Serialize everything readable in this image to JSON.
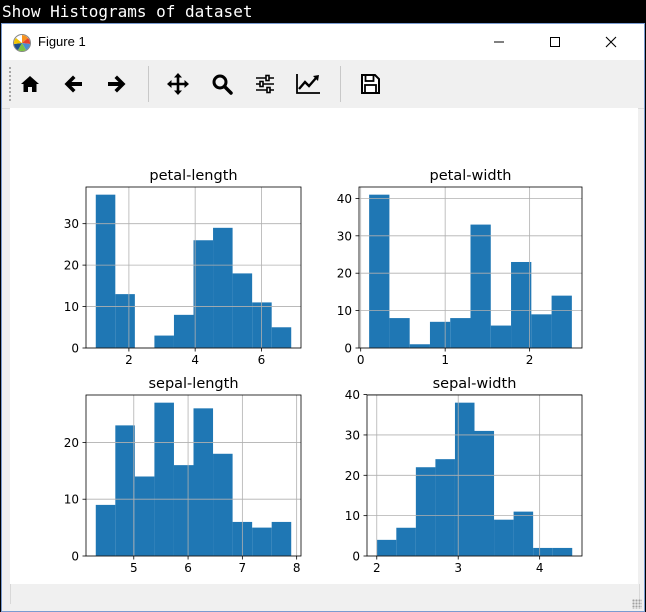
{
  "console": {
    "title": "Show Histograms of dataset"
  },
  "window": {
    "title": "Figure 1"
  },
  "toolbar": {
    "buttons": [
      {
        "name": "home-icon"
      },
      {
        "name": "back-icon"
      },
      {
        "name": "forward-icon"
      },
      {
        "name": "pan-icon"
      },
      {
        "name": "zoom-icon"
      },
      {
        "name": "configure-subplots-icon"
      },
      {
        "name": "edit-axis-icon"
      },
      {
        "name": "save-icon"
      }
    ]
  },
  "colors": {
    "bar": "#1f77b4",
    "grid": "#b0b0b0"
  },
  "chart_data": [
    {
      "type": "bar",
      "title": "petal-length",
      "bin_edges": [
        1.0,
        1.59,
        2.18,
        2.77,
        3.36,
        3.95,
        4.54,
        5.13,
        5.72,
        6.31,
        6.9
      ],
      "values": [
        37,
        13,
        0,
        3,
        8,
        26,
        29,
        18,
        11,
        5
      ],
      "xlim": [
        0.705,
        7.195
      ],
      "ylim": [
        0,
        38.85
      ],
      "xticks": [
        2,
        4,
        6
      ],
      "yticks": [
        0,
        10,
        20,
        30
      ],
      "grid": true
    },
    {
      "type": "bar",
      "title": "petal-width",
      "bin_edges": [
        0.1,
        0.34,
        0.58,
        0.82,
        1.06,
        1.3,
        1.54,
        1.78,
        2.02,
        2.26,
        2.5
      ],
      "values": [
        41,
        8,
        1,
        7,
        8,
        33,
        6,
        23,
        9,
        14
      ],
      "xlim": [
        -0.02,
        2.62
      ],
      "ylim": [
        0,
        43.05
      ],
      "xticks": [
        0,
        1,
        2
      ],
      "yticks": [
        0,
        10,
        20,
        30,
        40
      ],
      "grid": true
    },
    {
      "type": "bar",
      "title": "sepal-length",
      "bin_edges": [
        4.3,
        4.66,
        5.02,
        5.38,
        5.74,
        6.1,
        6.46,
        6.82,
        7.18,
        7.54,
        7.9
      ],
      "values": [
        9,
        23,
        14,
        27,
        16,
        26,
        18,
        6,
        5,
        6
      ],
      "xlim": [
        4.12,
        8.08
      ],
      "ylim": [
        0,
        28.35
      ],
      "xticks": [
        5,
        6,
        7,
        8
      ],
      "yticks": [
        0,
        10,
        20
      ],
      "grid": true
    },
    {
      "type": "bar",
      "title": "sepal-width",
      "bin_edges": [
        2.0,
        2.24,
        2.48,
        2.72,
        2.96,
        3.2,
        3.44,
        3.68,
        3.92,
        4.16,
        4.4
      ],
      "values": [
        4,
        7,
        22,
        24,
        38,
        31,
        9,
        11,
        2,
        2
      ],
      "xlim": [
        1.88,
        4.52
      ],
      "ylim": [
        0,
        39.9
      ],
      "xticks": [
        2,
        3,
        4
      ],
      "yticks": [
        0,
        10,
        20,
        30,
        40
      ],
      "grid": true
    }
  ]
}
